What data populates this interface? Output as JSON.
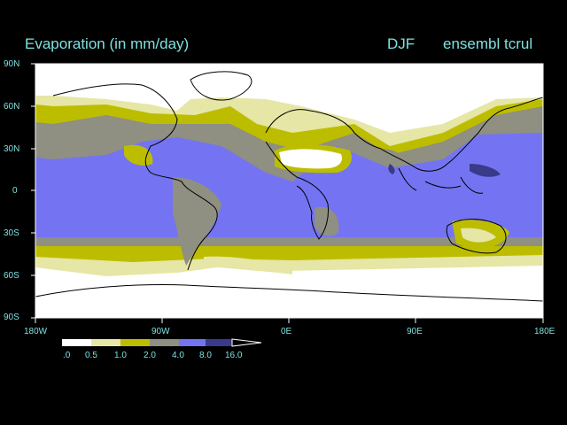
{
  "title": "Evaporation (in mm/day)",
  "season": "DJF",
  "model": "ensembl tcrul",
  "lat_labels": [
    "90N",
    "60N",
    "30N",
    "0",
    "30S",
    "60S",
    "90S"
  ],
  "lon_labels": [
    "180W",
    "90W",
    "0E",
    "90E",
    "180E"
  ],
  "colorbar": {
    "labels": [
      ".0",
      "0.5",
      "1.0",
      "2.0",
      "4.0",
      "8.0",
      "16.0"
    ],
    "colors": [
      "#ffffff",
      "#e6e6a6",
      "#bdbd00",
      "#8f8f82",
      "#7474f2",
      "#3a3a8a"
    ]
  },
  "colors": {
    "background": "#000000",
    "text": "#7fe0e0",
    "ocean_main": "#7474f2",
    "band_gray": "#8f8f82",
    "band_olive": "#bdbd00",
    "band_light": "#e6e6a6",
    "low": "#ffffff",
    "high": "#3a3a8a"
  }
}
